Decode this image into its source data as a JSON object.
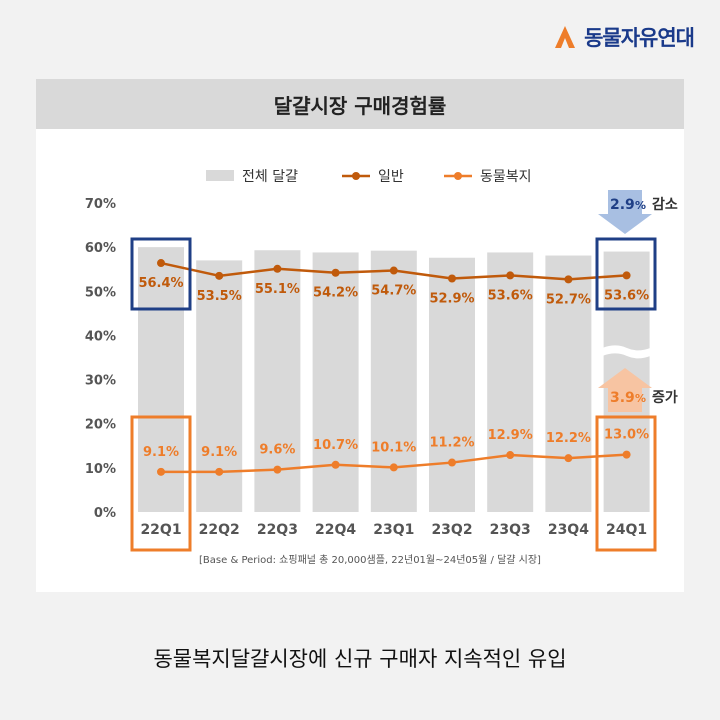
{
  "brand": {
    "name": "동물자유연대"
  },
  "panel": {
    "title": "달걀시장 구매경험률"
  },
  "caption": "동물복지달걀시장에 신규 구매자 지속적인 유입",
  "source_note": "[Base & Period: 쇼핑패널 총 20,000샘플, 22년01월~24년05월 / 달걀 시장]",
  "annotations": {
    "decrease": {
      "value": "2.9",
      "unit": "%",
      "label": "감소"
    },
    "increase": {
      "value": "3.9",
      "unit": "%",
      "label": "증가"
    }
  },
  "colors": {
    "bar": "#d9d9d9",
    "general_line": "#c05a0b",
    "welfare_line": "#ee7d2a",
    "highlight_blue": "#1f3f86",
    "highlight_orange": "#ee7d2a",
    "arrow_blue": "#a8bfe2",
    "arrow_orange": "#f7c4a2"
  },
  "chart_data": {
    "type": "bar",
    "categories": [
      "22Q1",
      "22Q2",
      "22Q3",
      "22Q4",
      "23Q1",
      "23Q2",
      "23Q3",
      "23Q4",
      "24Q1"
    ],
    "ylim": [
      0,
      70
    ],
    "yticks": [
      "0%",
      "10%",
      "20%",
      "30%",
      "40%",
      "50%",
      "60%",
      "70%"
    ],
    "grid": false,
    "legend_position": "top",
    "series": [
      {
        "name": "전체 달걀",
        "kind": "bar",
        "values": [
          60.0,
          57.0,
          59.3,
          58.8,
          59.2,
          57.6,
          58.8,
          58.1,
          59.0
        ]
      },
      {
        "name": "일반",
        "kind": "line",
        "values": [
          56.4,
          53.5,
          55.1,
          54.2,
          54.7,
          52.9,
          53.6,
          52.7,
          53.6
        ],
        "labels": [
          "56.4%",
          "53.5%",
          "55.1%",
          "54.2%",
          "54.7%",
          "52.9%",
          "53.6%",
          "52.7%",
          "53.6%"
        ]
      },
      {
        "name": "동물복지",
        "kind": "line",
        "values": [
          9.1,
          9.1,
          9.6,
          10.7,
          10.1,
          11.2,
          12.9,
          12.2,
          13.0
        ],
        "labels": [
          "9.1%",
          "9.1%",
          "9.6%",
          "10.7%",
          "10.1%",
          "11.2%",
          "12.9%",
          "12.2%",
          "13.0%"
        ]
      }
    ]
  }
}
